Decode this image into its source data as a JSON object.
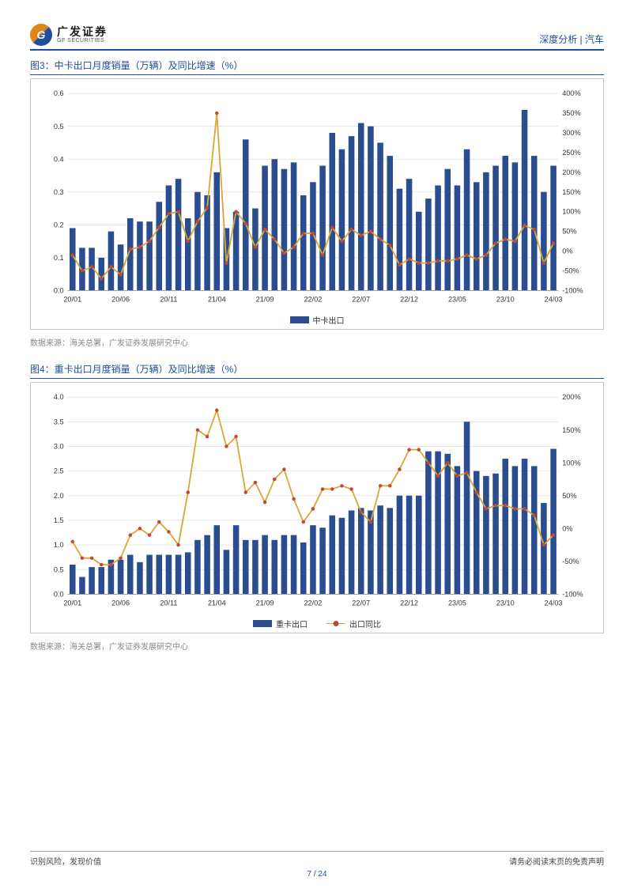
{
  "header": {
    "logo_cn": "广发证券",
    "logo_en": "GF SECURITIES",
    "right_text": "深度分析 | 汽车"
  },
  "figure3": {
    "title": "图3：中卡出口月度销量（万辆）及同比增速（%）",
    "type": "bar+line",
    "bar_label": "中卡出口",
    "bar_color": "#2a4d8f",
    "line_color": "#d9a83a",
    "marker_color": "#c74634",
    "grid_color": "#d8d8d8",
    "bg": "#ffffff",
    "y_left": {
      "min": 0.0,
      "max": 0.6,
      "step": 0.1,
      "ticks": [
        "0.0",
        "0.1",
        "0.2",
        "0.3",
        "0.4",
        "0.5",
        "0.6"
      ]
    },
    "y_right": {
      "min": -100,
      "max": 400,
      "step": 50,
      "ticks": [
        "-100%",
        "-50%",
        "0%",
        "50%",
        "100%",
        "150%",
        "200%",
        "250%",
        "300%",
        "350%",
        "400%"
      ]
    },
    "x_labels_shown": [
      "20/01",
      "20/06",
      "20/11",
      "21/04",
      "21/09",
      "22/02",
      "22/07",
      "22/12",
      "23/05",
      "23/10",
      "24/03"
    ],
    "x_count": 51,
    "bars": [
      0.19,
      0.13,
      0.13,
      0.1,
      0.18,
      0.14,
      0.22,
      0.21,
      0.21,
      0.27,
      0.32,
      0.34,
      0.22,
      0.3,
      0.29,
      0.36,
      0.19,
      0.24,
      0.46,
      0.25,
      0.38,
      0.4,
      0.37,
      0.39,
      0.29,
      0.33,
      0.38,
      0.48,
      0.43,
      0.47,
      0.51,
      0.5,
      0.45,
      0.41,
      0.31,
      0.34,
      0.24,
      0.28,
      0.32,
      0.37,
      0.32,
      0.43,
      0.33,
      0.36,
      0.38,
      0.41,
      0.39,
      0.55,
      0.41,
      0.3,
      0.38
    ],
    "line_pct": [
      -10,
      -50,
      -40,
      -70,
      -40,
      -60,
      5,
      10,
      25,
      60,
      95,
      100,
      25,
      75,
      110,
      350,
      -30,
      100,
      70,
      10,
      55,
      30,
      -5,
      10,
      45,
      45,
      -10,
      60,
      25,
      55,
      40,
      50,
      30,
      15,
      -35,
      -20,
      -30,
      -30,
      -25,
      -25,
      -20,
      -10,
      -20,
      -10,
      20,
      30,
      25,
      65,
      55,
      -30,
      20
    ],
    "source": "数据来源：海关总署，广发证券发展研究中心"
  },
  "figure4": {
    "title": "图4：重卡出口月度销量（万辆）及同比增速（%）",
    "type": "bar+line",
    "bar_label": "重卡出口",
    "line_label": "出口同比",
    "bar_color": "#2a4d8f",
    "line_color": "#d9a83a",
    "marker_color": "#c74634",
    "grid_color": "#d8d8d8",
    "bg": "#ffffff",
    "y_left": {
      "min": 0.0,
      "max": 4.0,
      "step": 0.5,
      "ticks": [
        "0.0",
        "0.5",
        "1.0",
        "1.5",
        "2.0",
        "2.5",
        "3.0",
        "3.5",
        "4.0"
      ]
    },
    "y_right": {
      "min": -100,
      "max": 200,
      "step": 50,
      "ticks": [
        "-100%",
        "-50%",
        "0%",
        "50%",
        "100%",
        "150%",
        "200%"
      ]
    },
    "x_labels_shown": [
      "20/01",
      "20/06",
      "20/11",
      "21/04",
      "21/09",
      "22/02",
      "22/07",
      "22/12",
      "23/05",
      "23/10",
      "24/03"
    ],
    "x_count": 51,
    "bars": [
      0.6,
      0.35,
      0.55,
      0.55,
      0.7,
      0.7,
      0.8,
      0.65,
      0.8,
      0.8,
      0.8,
      0.8,
      0.85,
      1.1,
      1.2,
      1.4,
      0.9,
      1.4,
      1.1,
      1.1,
      1.2,
      1.1,
      1.2,
      1.2,
      1.05,
      1.4,
      1.35,
      1.6,
      1.55,
      1.7,
      1.75,
      1.7,
      1.8,
      1.75,
      2.0,
      2.0,
      2.0,
      2.9,
      2.9,
      2.85,
      2.6,
      3.5,
      2.5,
      2.4,
      2.45,
      2.75,
      2.6,
      2.75,
      2.6,
      1.85,
      2.95
    ],
    "line_pct": [
      -20,
      -45,
      -45,
      -55,
      -55,
      -45,
      -10,
      0,
      -10,
      10,
      -5,
      -25,
      55,
      150,
      140,
      180,
      125,
      140,
      55,
      70,
      40,
      75,
      90,
      45,
      10,
      30,
      60,
      60,
      65,
      60,
      25,
      10,
      65,
      65,
      90,
      120,
      120,
      100,
      80,
      100,
      80,
      85,
      55,
      30,
      35,
      35,
      30,
      30,
      20,
      -25,
      -10
    ],
    "source": "数据来源：海关总署，广发证券发展研究中心"
  },
  "footer": {
    "left": "识别风险，发现价值",
    "right": "请务必阅读末页的免责声明",
    "page": "7 / 24"
  }
}
